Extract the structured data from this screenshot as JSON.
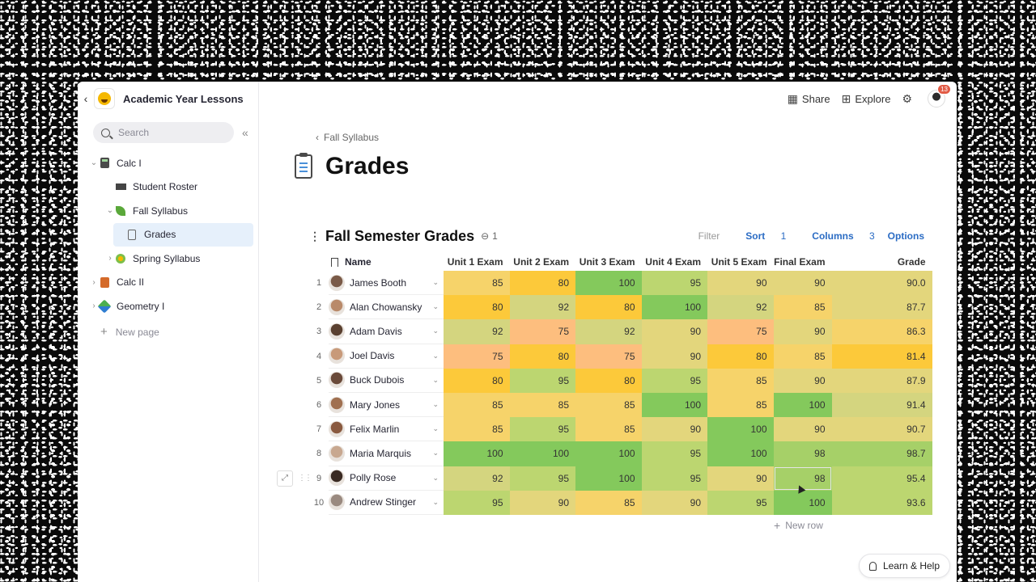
{
  "workspace": {
    "title": "Academic Year Lessons"
  },
  "search": {
    "placeholder": "Search"
  },
  "tree": [
    {
      "label": "Calc I",
      "icon": "calculator-icon",
      "level": 0,
      "chevron": "⌄"
    },
    {
      "label": "Student Roster",
      "icon": "graduation-cap-icon",
      "level": 1,
      "chevron": ""
    },
    {
      "label": "Fall Syllabus",
      "icon": "leaf-icon",
      "level": 1,
      "chevron": "⌄"
    },
    {
      "label": "Grades",
      "icon": "clipboard-icon",
      "level": 2,
      "chevron": "",
      "selected": true
    },
    {
      "label": "Spring Syllabus",
      "icon": "flower-icon",
      "level": 1,
      "chevron": "›"
    },
    {
      "label": "Calc II",
      "icon": "abacus-icon",
      "level": 0,
      "chevron": "›"
    },
    {
      "label": "Geometry I",
      "icon": "shapes-icon",
      "level": 0,
      "chevron": "›"
    }
  ],
  "sidebar": {
    "new_page": "New page"
  },
  "topbar": {
    "share": "Share",
    "explore": "Explore",
    "notifications": "13"
  },
  "breadcrumb": {
    "label": "Fall Syllabus"
  },
  "page": {
    "title": "Grades"
  },
  "table": {
    "title": "Fall Semester Grades",
    "link_count": "1",
    "filter": "Filter",
    "sort": "Sort",
    "sort_count": "1",
    "columns_label": "Columns",
    "columns_count": "3",
    "options": "Options",
    "new_row": "New row",
    "headers": [
      "Name",
      "Unit 1 Exam",
      "Unit 2 Exam",
      "Unit 3 Exam",
      "Unit 4 Exam",
      "Unit 5 Exam",
      "Final Exam",
      "Grade"
    ],
    "rows": [
      {
        "idx": "1",
        "name": "James Booth",
        "scores": [
          "85",
          "80",
          "100",
          "95",
          "90",
          "90"
        ],
        "grade": "90.0",
        "avatar": "#7a5a48"
      },
      {
        "idx": "2",
        "name": "Alan Chowansky",
        "scores": [
          "80",
          "92",
          "80",
          "100",
          "92",
          "85"
        ],
        "grade": "87.7",
        "avatar": "#b98a6a"
      },
      {
        "idx": "3",
        "name": "Adam Davis",
        "scores": [
          "92",
          "75",
          "92",
          "90",
          "75",
          "90"
        ],
        "grade": "86.3",
        "avatar": "#5a4030"
      },
      {
        "idx": "4",
        "name": "Joel Davis",
        "scores": [
          "75",
          "80",
          "75",
          "90",
          "80",
          "85"
        ],
        "grade": "81.4",
        "avatar": "#c89a7a"
      },
      {
        "idx": "5",
        "name": "Buck Dubois",
        "scores": [
          "80",
          "95",
          "80",
          "95",
          "85",
          "90"
        ],
        "grade": "87.9",
        "avatar": "#6a4a3a"
      },
      {
        "idx": "6",
        "name": "Mary Jones",
        "scores": [
          "85",
          "85",
          "85",
          "100",
          "85",
          "100"
        ],
        "grade": "91.4",
        "avatar": "#a07050"
      },
      {
        "idx": "7",
        "name": "Felix Marlin",
        "scores": [
          "85",
          "95",
          "85",
          "90",
          "100",
          "90"
        ],
        "grade": "90.7",
        "avatar": "#8a5a40"
      },
      {
        "idx": "8",
        "name": "Maria Marquis",
        "scores": [
          "100",
          "100",
          "100",
          "95",
          "100",
          "98"
        ],
        "grade": "98.7",
        "avatar": "#c8a890"
      },
      {
        "idx": "9",
        "name": "Polly Rose",
        "scores": [
          "92",
          "95",
          "100",
          "95",
          "90",
          "98"
        ],
        "grade": "95.4",
        "avatar": "#3a2a22"
      },
      {
        "idx": "10",
        "name": "Andrew Stinger",
        "scores": [
          "95",
          "90",
          "85",
          "90",
          "95",
          "100"
        ],
        "grade": "93.6",
        "avatar": "#9a8a80"
      }
    ]
  },
  "help": {
    "label": "Learn & Help"
  },
  "colors": {
    "scale": {
      "75": "#fdbe7e",
      "80": "#fcc93a",
      "85": "#f6d36a",
      "90": "#e3d67c",
      "92": "#d4d57f",
      "95": "#bcd670",
      "98": "#a6d068",
      "100": "#84c95c"
    },
    "accent": "#2b6cc4",
    "selected_bg": "#e6f0fb"
  }
}
